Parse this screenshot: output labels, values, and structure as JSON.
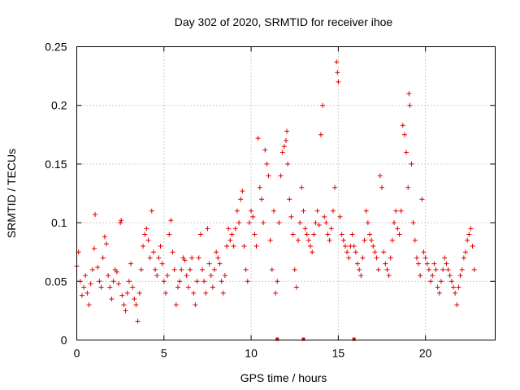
{
  "chart_data": {
    "type": "scatter",
    "title": "Day 302 of 2020, SRMTID for receiver ihoe",
    "xlabel": "GPS time / hours",
    "ylabel": "SRMTID / TECUs",
    "xlim": [
      0,
      24
    ],
    "ylim": [
      0,
      0.25
    ],
    "x_ticks": [
      0,
      5,
      10,
      15,
      20
    ],
    "x_tick_labels": [
      "0",
      "5",
      "10",
      "15",
      "20"
    ],
    "y_ticks": [
      0,
      0.05,
      0.1,
      0.15,
      0.2,
      0.25
    ],
    "y_tick_labels": [
      "0",
      "0.05",
      "0.1",
      "0.15",
      "0.2",
      "0.25"
    ],
    "grid": true,
    "marker": "plus",
    "color": "#e00000",
    "series": [
      {
        "name": "SRMTID",
        "points": [
          [
            0.0,
            0.063
          ],
          [
            0.1,
            0.075
          ],
          [
            0.2,
            0.05
          ],
          [
            0.3,
            0.038
          ],
          [
            0.4,
            0.045
          ],
          [
            0.5,
            0.055
          ],
          [
            0.6,
            0.04
          ],
          [
            0.7,
            0.03
          ],
          [
            0.8,
            0.048
          ],
          [
            0.9,
            0.06
          ],
          [
            1.0,
            0.078
          ],
          [
            1.05,
            0.107
          ],
          [
            1.2,
            0.062
          ],
          [
            1.3,
            0.05
          ],
          [
            1.4,
            0.045
          ],
          [
            1.5,
            0.07
          ],
          [
            1.6,
            0.088
          ],
          [
            1.7,
            0.082
          ],
          [
            1.8,
            0.055
          ],
          [
            1.9,
            0.045
          ],
          [
            2.0,
            0.035
          ],
          [
            2.1,
            0.05
          ],
          [
            2.2,
            0.06
          ],
          [
            2.3,
            0.058
          ],
          [
            2.4,
            0.048
          ],
          [
            2.5,
            0.1
          ],
          [
            2.55,
            0.102
          ],
          [
            2.6,
            0.038
          ],
          [
            2.7,
            0.03
          ],
          [
            2.8,
            0.025
          ],
          [
            2.9,
            0.04
          ],
          [
            3.0,
            0.05
          ],
          [
            3.1,
            0.065
          ],
          [
            3.2,
            0.045
          ],
          [
            3.3,
            0.035
          ],
          [
            3.4,
            0.03
          ],
          [
            3.5,
            0.016
          ],
          [
            3.6,
            0.04
          ],
          [
            3.7,
            0.06
          ],
          [
            3.8,
            0.08
          ],
          [
            3.9,
            0.09
          ],
          [
            4.0,
            0.095
          ],
          [
            4.1,
            0.085
          ],
          [
            4.2,
            0.07
          ],
          [
            4.3,
            0.11
          ],
          [
            4.4,
            0.075
          ],
          [
            4.5,
            0.06
          ],
          [
            4.6,
            0.055
          ],
          [
            4.7,
            0.07
          ],
          [
            4.8,
            0.08
          ],
          [
            4.9,
            0.065
          ],
          [
            5.0,
            0.05
          ],
          [
            5.1,
            0.04
          ],
          [
            5.2,
            0.055
          ],
          [
            5.3,
            0.09
          ],
          [
            5.4,
            0.102
          ],
          [
            5.5,
            0.075
          ],
          [
            5.6,
            0.06
          ],
          [
            5.7,
            0.03
          ],
          [
            5.8,
            0.045
          ],
          [
            5.9,
            0.05
          ],
          [
            6.0,
            0.06
          ],
          [
            6.1,
            0.07
          ],
          [
            6.2,
            0.068
          ],
          [
            6.3,
            0.055
          ],
          [
            6.4,
            0.045
          ],
          [
            6.5,
            0.06
          ],
          [
            6.6,
            0.07
          ],
          [
            6.7,
            0.04
          ],
          [
            6.8,
            0.03
          ],
          [
            6.9,
            0.05
          ],
          [
            7.0,
            0.07
          ],
          [
            7.1,
            0.09
          ],
          [
            7.2,
            0.06
          ],
          [
            7.3,
            0.05
          ],
          [
            7.4,
            0.04
          ],
          [
            7.5,
            0.095
          ],
          [
            7.6,
            0.065
          ],
          [
            7.7,
            0.055
          ],
          [
            7.8,
            0.045
          ],
          [
            7.9,
            0.06
          ],
          [
            8.0,
            0.075
          ],
          [
            8.1,
            0.07
          ],
          [
            8.2,
            0.065
          ],
          [
            8.3,
            0.05
          ],
          [
            8.4,
            0.04
          ],
          [
            8.5,
            0.055
          ],
          [
            8.6,
            0.08
          ],
          [
            8.7,
            0.095
          ],
          [
            8.8,
            0.085
          ],
          [
            8.9,
            0.09
          ],
          [
            9.0,
            0.08
          ],
          [
            9.1,
            0.095
          ],
          [
            9.2,
            0.11
          ],
          [
            9.3,
            0.1
          ],
          [
            9.4,
            0.12
          ],
          [
            9.5,
            0.127
          ],
          [
            9.6,
            0.08
          ],
          [
            9.7,
            0.06
          ],
          [
            9.8,
            0.05
          ],
          [
            9.9,
            0.1
          ],
          [
            10.0,
            0.11
          ],
          [
            10.1,
            0.105
          ],
          [
            10.2,
            0.09
          ],
          [
            10.3,
            0.08
          ],
          [
            10.4,
            0.172
          ],
          [
            10.5,
            0.13
          ],
          [
            10.6,
            0.12
          ],
          [
            10.7,
            0.1
          ],
          [
            10.8,
            0.162
          ],
          [
            10.9,
            0.15
          ],
          [
            11.0,
            0.14
          ],
          [
            11.1,
            0.085
          ],
          [
            11.2,
            0.06
          ],
          [
            11.3,
            0.11
          ],
          [
            11.4,
            0.04
          ],
          [
            11.5,
            0.05
          ],
          [
            11.6,
            0.1
          ],
          [
            11.7,
            0.14
          ],
          [
            11.8,
            0.16
          ],
          [
            11.9,
            0.165
          ],
          [
            12.0,
            0.17
          ],
          [
            12.05,
            0.178
          ],
          [
            12.1,
            0.15
          ],
          [
            12.2,
            0.12
          ],
          [
            12.3,
            0.105
          ],
          [
            12.4,
            0.09
          ],
          [
            12.5,
            0.06
          ],
          [
            12.6,
            0.045
          ],
          [
            12.7,
            0.085
          ],
          [
            12.8,
            0.1
          ],
          [
            12.9,
            0.13
          ],
          [
            13.0,
            0.11
          ],
          [
            13.1,
            0.095
          ],
          [
            13.2,
            0.09
          ],
          [
            13.3,
            0.085
          ],
          [
            13.4,
            0.08
          ],
          [
            13.5,
            0.075
          ],
          [
            13.6,
            0.09
          ],
          [
            13.7,
            0.1
          ],
          [
            13.8,
            0.11
          ],
          [
            13.9,
            0.098
          ],
          [
            14.0,
            0.175
          ],
          [
            14.1,
            0.2
          ],
          [
            14.2,
            0.105
          ],
          [
            14.3,
            0.1
          ],
          [
            14.4,
            0.09
          ],
          [
            14.5,
            0.085
          ],
          [
            14.6,
            0.095
          ],
          [
            14.7,
            0.11
          ],
          [
            14.8,
            0.13
          ],
          [
            14.9,
            0.237
          ],
          [
            14.95,
            0.228
          ],
          [
            15.0,
            0.22
          ],
          [
            15.1,
            0.105
          ],
          [
            15.2,
            0.09
          ],
          [
            15.3,
            0.085
          ],
          [
            15.4,
            0.08
          ],
          [
            15.5,
            0.075
          ],
          [
            15.6,
            0.07
          ],
          [
            15.7,
            0.08
          ],
          [
            15.8,
            0.09
          ],
          [
            15.9,
            0.08
          ],
          [
            16.0,
            0.075
          ],
          [
            16.1,
            0.065
          ],
          [
            16.2,
            0.06
          ],
          [
            16.3,
            0.055
          ],
          [
            16.4,
            0.07
          ],
          [
            16.5,
            0.085
          ],
          [
            16.6,
            0.11
          ],
          [
            16.7,
            0.1
          ],
          [
            16.8,
            0.09
          ],
          [
            16.9,
            0.085
          ],
          [
            17.0,
            0.08
          ],
          [
            17.1,
            0.075
          ],
          [
            17.2,
            0.07
          ],
          [
            17.3,
            0.06
          ],
          [
            17.4,
            0.14
          ],
          [
            17.5,
            0.13
          ],
          [
            17.6,
            0.075
          ],
          [
            17.7,
            0.065
          ],
          [
            17.8,
            0.06
          ],
          [
            17.9,
            0.055
          ],
          [
            18.0,
            0.07
          ],
          [
            18.1,
            0.085
          ],
          [
            18.2,
            0.1
          ],
          [
            18.3,
            0.11
          ],
          [
            18.4,
            0.095
          ],
          [
            18.5,
            0.09
          ],
          [
            18.6,
            0.11
          ],
          [
            18.7,
            0.183
          ],
          [
            18.8,
            0.175
          ],
          [
            18.9,
            0.16
          ],
          [
            19.0,
            0.13
          ],
          [
            19.05,
            0.21
          ],
          [
            19.1,
            0.2
          ],
          [
            19.2,
            0.15
          ],
          [
            19.3,
            0.1
          ],
          [
            19.4,
            0.085
          ],
          [
            19.5,
            0.07
          ],
          [
            19.6,
            0.065
          ],
          [
            19.7,
            0.055
          ],
          [
            19.8,
            0.12
          ],
          [
            19.9,
            0.075
          ],
          [
            20.0,
            0.07
          ],
          [
            20.1,
            0.065
          ],
          [
            20.2,
            0.06
          ],
          [
            20.3,
            0.05
          ],
          [
            20.4,
            0.055
          ],
          [
            20.5,
            0.065
          ],
          [
            20.6,
            0.06
          ],
          [
            20.7,
            0.045
          ],
          [
            20.8,
            0.04
          ],
          [
            20.9,
            0.05
          ],
          [
            21.0,
            0.06
          ],
          [
            21.1,
            0.07
          ],
          [
            21.2,
            0.065
          ],
          [
            21.3,
            0.06
          ],
          [
            21.4,
            0.055
          ],
          [
            21.5,
            0.05
          ],
          [
            21.6,
            0.045
          ],
          [
            21.7,
            0.04
          ],
          [
            21.8,
            0.03
          ],
          [
            21.9,
            0.045
          ],
          [
            22.0,
            0.055
          ],
          [
            22.1,
            0.06
          ],
          [
            22.2,
            0.07
          ],
          [
            22.3,
            0.075
          ],
          [
            22.4,
            0.085
          ],
          [
            22.5,
            0.09
          ],
          [
            22.6,
            0.095
          ],
          [
            22.7,
            0.08
          ],
          [
            22.8,
            0.06
          ]
        ]
      }
    ],
    "dropout_markers": [
      11.5,
      13.0,
      15.9
    ]
  }
}
